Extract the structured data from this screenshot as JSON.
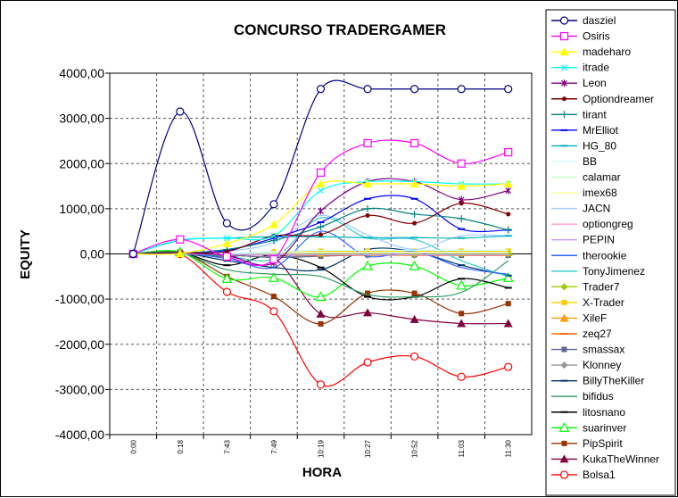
{
  "chart_data": {
    "type": "line",
    "title": "CONCURSO TRADERGAMER",
    "xlabel": "HORA",
    "ylabel": "EQUITY",
    "ylim": [
      -4000,
      4000
    ],
    "yticks": [
      "4000,00",
      "3000,00",
      "2000,00",
      "1000,00",
      "0,00",
      "-1000,00",
      "-2000,00",
      "-3000,00",
      "-4000,00"
    ],
    "ytick_values": [
      4000,
      3000,
      2000,
      1000,
      0,
      -1000,
      -2000,
      -3000,
      -4000
    ],
    "categories": [
      "0:00",
      "0:18",
      "7:43",
      "7:49",
      "10:19",
      "10:27",
      "10:52",
      "11:03",
      "11:30"
    ],
    "grid": true,
    "legend_position": "right",
    "series": [
      {
        "name": "dasziel",
        "color": "#000080",
        "marker": "circle-open",
        "values": [
          0,
          3150,
          680,
          1100,
          3650,
          3650,
          3650,
          3650,
          3650
        ]
      },
      {
        "name": "Osiris",
        "color": "#ff00ff",
        "marker": "square-open",
        "values": [
          0,
          320,
          -60,
          -120,
          1800,
          2450,
          2450,
          2000,
          2250
        ]
      },
      {
        "name": "madeharo",
        "color": "#ffff00",
        "marker": "triangle",
        "values": [
          0,
          10,
          230,
          650,
          1550,
          1550,
          1550,
          1500,
          1550
        ]
      },
      {
        "name": "itrade",
        "color": "#00ffff",
        "marker": "x",
        "values": [
          0,
          310,
          350,
          400,
          1400,
          1600,
          1600,
          1550,
          1550
        ]
      },
      {
        "name": "Leon",
        "color": "#800080",
        "marker": "star",
        "values": [
          0,
          20,
          -40,
          -200,
          950,
          1600,
          1600,
          1200,
          1400
        ]
      },
      {
        "name": "Optiondreamer",
        "color": "#800000",
        "marker": "dot",
        "values": [
          0,
          30,
          50,
          400,
          430,
          850,
          680,
          1120,
          880
        ]
      },
      {
        "name": "tirant",
        "color": "#008080",
        "marker": "plus",
        "values": [
          0,
          15,
          100,
          300,
          600,
          1000,
          880,
          780,
          530
        ]
      },
      {
        "name": "MrElliot",
        "color": "#0000ff",
        "marker": "dash",
        "values": [
          0,
          25,
          80,
          350,
          700,
          1220,
          1220,
          550,
          530
        ]
      },
      {
        "name": "HG_80",
        "color": "#00b0c0",
        "marker": "dash",
        "values": [
          0,
          300,
          350,
          380,
          380,
          360,
          360,
          350,
          400
        ]
      },
      {
        "name": "BB",
        "color": "#ccffff",
        "marker": "none",
        "values": [
          0,
          10,
          20,
          50,
          80,
          80,
          80,
          80,
          80
        ]
      },
      {
        "name": "calamar",
        "color": "#ccffcc",
        "marker": "none",
        "values": [
          0,
          5,
          10,
          20,
          30,
          30,
          30,
          30,
          30
        ]
      },
      {
        "name": "imex68",
        "color": "#ffff99",
        "marker": "none",
        "values": [
          0,
          5,
          15,
          25,
          40,
          40,
          40,
          40,
          40
        ]
      },
      {
        "name": "JACN",
        "color": "#99ccff",
        "marker": "none",
        "values": [
          0,
          10,
          60,
          250,
          850,
          420,
          100,
          400,
          400
        ]
      },
      {
        "name": "optiongreg",
        "color": "#ff99cc",
        "marker": "none",
        "values": [
          0,
          5,
          10,
          15,
          20,
          20,
          20,
          20,
          20
        ]
      },
      {
        "name": "PEPIN",
        "color": "#cc99ff",
        "marker": "none",
        "values": [
          0,
          -5,
          -10,
          -15,
          -20,
          -20,
          -20,
          -20,
          -20
        ]
      },
      {
        "name": "therookie",
        "color": "#3366ff",
        "marker": "none",
        "values": [
          0,
          10,
          -100,
          -300,
          500,
          -50,
          50,
          -300,
          -450
        ]
      },
      {
        "name": "TonyJimenez",
        "color": "#33cccc",
        "marker": "none",
        "values": [
          0,
          10,
          -50,
          -100,
          800,
          350,
          320,
          -150,
          -500
        ]
      },
      {
        "name": "Trader7",
        "color": "#99cc00",
        "marker": "diamond",
        "values": [
          0,
          0,
          0,
          0,
          0,
          0,
          0,
          0,
          0
        ]
      },
      {
        "name": "X-Trader",
        "color": "#ffcc00",
        "marker": "square",
        "values": [
          0,
          5,
          20,
          40,
          60,
          60,
          60,
          60,
          60
        ]
      },
      {
        "name": "XileF",
        "color": "#ff9900",
        "marker": "triangle",
        "values": [
          0,
          5,
          15,
          30,
          20,
          30,
          30,
          30,
          30
        ]
      },
      {
        "name": "zeq27",
        "color": "#ff6600",
        "marker": "dash",
        "values": [
          0,
          -5,
          -10,
          -20,
          -30,
          -30,
          -30,
          -30,
          -30
        ]
      },
      {
        "name": "smassax",
        "color": "#666699",
        "marker": "square",
        "values": [
          0,
          15,
          -20,
          -80,
          -50,
          -20,
          -20,
          -30,
          -30
        ]
      },
      {
        "name": "Klonney",
        "color": "#969696",
        "marker": "diamond",
        "values": [
          0,
          10,
          -30,
          -60,
          -40,
          -30,
          -30,
          -30,
          -30
        ]
      },
      {
        "name": "BillyTheKiller",
        "color": "#003366",
        "marker": "dash",
        "values": [
          0,
          20,
          -150,
          -300,
          -350,
          100,
          50,
          -250,
          -480
        ]
      },
      {
        "name": "bifidus",
        "color": "#339966",
        "marker": "none",
        "values": [
          0,
          20,
          -350,
          -450,
          -500,
          -900,
          -950,
          -850,
          -150
        ]
      },
      {
        "name": "litosnano",
        "color": "#000000",
        "marker": "dash",
        "values": [
          0,
          30,
          -250,
          -20,
          -300,
          -950,
          -950,
          -550,
          -750
        ]
      },
      {
        "name": "suarinver",
        "color": "#00ff00",
        "marker": "triangle-open",
        "values": [
          0,
          40,
          -550,
          -530,
          -950,
          -270,
          -270,
          -700,
          -530
        ]
      },
      {
        "name": "PipSpirit",
        "color": "#993300",
        "marker": "square",
        "values": [
          0,
          40,
          -500,
          -940,
          -1550,
          -870,
          -870,
          -1320,
          -1100
        ]
      },
      {
        "name": "KukaTheWinner",
        "color": "#800040",
        "marker": "triangle",
        "values": [
          0,
          10,
          -60,
          -80,
          -1330,
          -1300,
          -1450,
          -1540,
          -1540
        ]
      },
      {
        "name": "Bolsa1",
        "color": "#ff0000",
        "marker": "circle-open",
        "values": [
          0,
          0,
          -840,
          -1270,
          -2890,
          -2400,
          -2270,
          -2720,
          -2500
        ]
      }
    ]
  }
}
